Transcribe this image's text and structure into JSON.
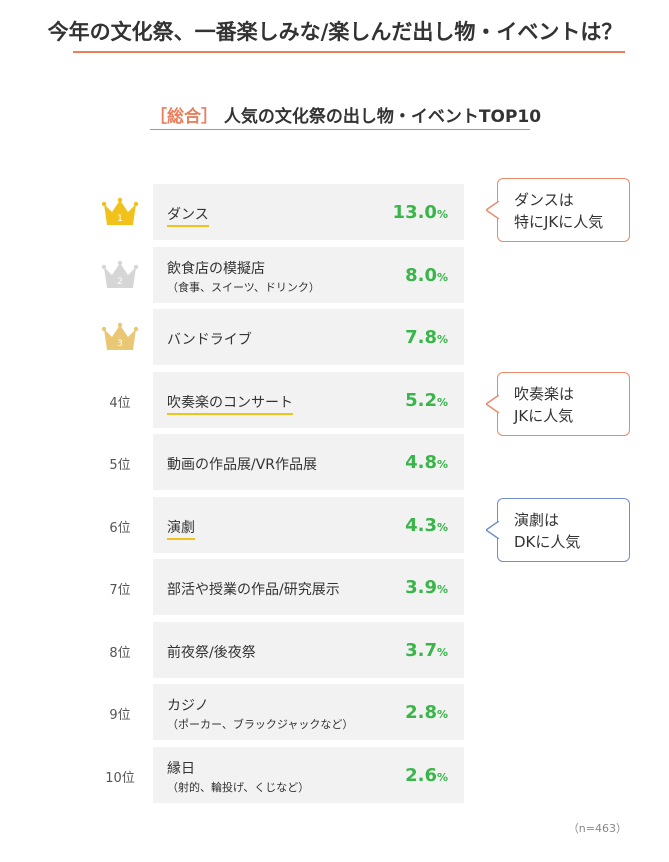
{
  "title": "今年の文化祭、一番楽しみな/楽しんだ出し物・イベントは？",
  "subtitle": {
    "bracket_open": "［",
    "bracket_label": "総合",
    "bracket_close": "］",
    "text": "人気の文化祭の出し物・イベントTOP10"
  },
  "note": "（n=463）",
  "colors": {
    "accent": "#ea7f5e",
    "value_green": "#39b54a",
    "underline_yellow": "#f1c21b",
    "crown_gold": "#f1c21b",
    "crown_silver": "#d6d6d6",
    "crown_bronze": "#e9c774",
    "callout_blue": "#6f8fc6",
    "row_bg": "#f2f2f2"
  },
  "chart_data": {
    "type": "table",
    "title": "人気の文化祭の出し物・イベントTOP10",
    "unit": "%",
    "rows": [
      {
        "rank": 1,
        "rank_label": "1",
        "label": "ダンス",
        "sublabel": "",
        "value": 13.0,
        "display": "13.0",
        "underline": true
      },
      {
        "rank": 2,
        "rank_label": "2",
        "label": "飲食店の模擬店",
        "sublabel": "（食事、スイーツ、ドリンク）",
        "value": 8.0,
        "display": "8.0",
        "underline": false
      },
      {
        "rank": 3,
        "rank_label": "3",
        "label": "バンドライブ",
        "sublabel": "",
        "value": 7.8,
        "display": "7.8",
        "underline": false
      },
      {
        "rank": 4,
        "rank_label": "4位",
        "label": "吹奏楽のコンサート",
        "sublabel": "",
        "value": 5.2,
        "display": "5.2",
        "underline": true
      },
      {
        "rank": 5,
        "rank_label": "5位",
        "label": "動画の作品展/VR作品展",
        "sublabel": "",
        "value": 4.8,
        "display": "4.8",
        "underline": false
      },
      {
        "rank": 6,
        "rank_label": "6位",
        "label": "演劇",
        "sublabel": "",
        "value": 4.3,
        "display": "4.3",
        "underline": true
      },
      {
        "rank": 7,
        "rank_label": "7位",
        "label": "部活や授業の作品/研究展示",
        "sublabel": "",
        "value": 3.9,
        "display": "3.9",
        "underline": false
      },
      {
        "rank": 8,
        "rank_label": "8位",
        "label": "前夜祭/後夜祭",
        "sublabel": "",
        "value": 3.7,
        "display": "3.7",
        "underline": false
      },
      {
        "rank": 9,
        "rank_label": "9位",
        "label": "カジノ",
        "sublabel": "（ポーカー、ブラックジャックなど）",
        "value": 2.8,
        "display": "2.8",
        "underline": false
      },
      {
        "rank": 10,
        "rank_label": "10位",
        "label": "縁日",
        "sublabel": "（射的、輪投げ、くじなど）",
        "value": 2.6,
        "display": "2.6",
        "underline": false
      }
    ]
  },
  "callouts": [
    {
      "line1": "ダンスは",
      "line2": "特にJKに人気",
      "color": "orange"
    },
    {
      "line1": "吹奏楽は",
      "line2": "JKに人気",
      "color": "orange"
    },
    {
      "line1": "演劇は",
      "line2": "DKに人気",
      "color": "blue"
    }
  ]
}
